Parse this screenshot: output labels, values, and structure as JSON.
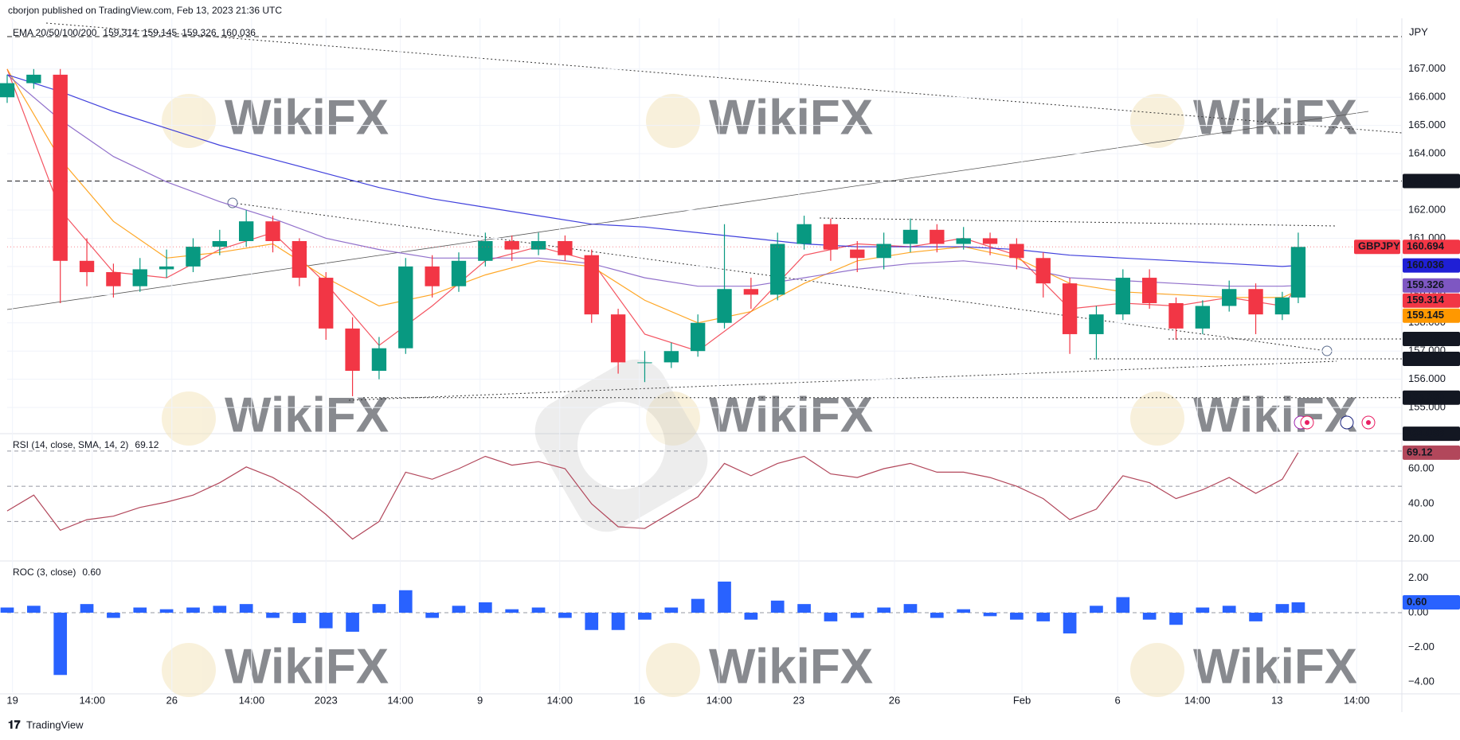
{
  "header": {
    "publisher": "cborjon published on TradingView.com, Feb 13, 2023 21:36 UTC",
    "currency": "JPY",
    "footer": "TradingView",
    "watermark": "WikiFX"
  },
  "chart_data": [
    {
      "type": "candlestick",
      "symbol": "GBPJPY",
      "title": "EMA 20/50/100/200",
      "up_color": "#089981",
      "down_color": "#f23645",
      "xlim": [
        0,
        262.5
      ],
      "ylim": [
        154.1,
        168.8
      ],
      "yticks": [
        {
          "value": 155,
          "label": "155.000"
        },
        {
          "value": 156,
          "label": "156.000"
        },
        {
          "value": 157,
          "label": "157.000"
        },
        {
          "value": 158,
          "label": "158.000"
        },
        {
          "value": 159,
          "label": "159.000"
        },
        {
          "value": 160,
          "label": "160.000"
        },
        {
          "value": 161,
          "label": "161.000"
        },
        {
          "value": 162,
          "label": "162.000"
        },
        {
          "value": 163,
          "label": "163.000"
        },
        {
          "value": 164,
          "label": "164.000"
        },
        {
          "value": 165,
          "label": "165.000"
        },
        {
          "value": 166,
          "label": "166.000"
        },
        {
          "value": 167,
          "label": "167.000"
        }
      ],
      "x": [
        0,
        5,
        10,
        15,
        20,
        25,
        30,
        35,
        40,
        45,
        50,
        55,
        60,
        65,
        70,
        75,
        80,
        85,
        90,
        95,
        100,
        105,
        110,
        115,
        120,
        125,
        130,
        135,
        140,
        145,
        150,
        155,
        160,
        165,
        170,
        175,
        180,
        185,
        190,
        195,
        200,
        205,
        210,
        215,
        220,
        225,
        230,
        235,
        240,
        243
      ],
      "open": [
        166.0,
        166.5,
        166.8,
        160.2,
        159.8,
        159.3,
        159.9,
        160.0,
        160.7,
        160.9,
        161.6,
        160.9,
        159.6,
        157.8,
        156.3,
        157.1,
        160.0,
        159.3,
        160.2,
        160.9,
        160.6,
        160.9,
        160.4,
        158.3,
        156.6,
        156.6,
        157.0,
        158.0,
        159.2,
        159.0,
        160.8,
        161.5,
        160.6,
        160.3,
        160.8,
        161.3,
        160.8,
        161.0,
        160.8,
        160.3,
        159.4,
        157.6,
        158.3,
        159.6,
        158.7,
        157.8,
        158.6,
        159.2,
        158.3,
        158.9
      ],
      "high": [
        166.8,
        167.0,
        167.0,
        161.0,
        160.1,
        160.3,
        160.6,
        161.0,
        161.3,
        162.0,
        161.8,
        161.0,
        159.8,
        158.2,
        157.5,
        160.3,
        160.4,
        160.5,
        161.2,
        161.1,
        161.2,
        161.1,
        160.6,
        158.5,
        157.0,
        157.3,
        158.3,
        161.5,
        159.6,
        161.2,
        161.8,
        161.7,
        160.9,
        161.2,
        161.7,
        161.5,
        161.4,
        161.2,
        161.0,
        160.5,
        159.6,
        158.6,
        159.9,
        159.9,
        158.9,
        158.8,
        159.5,
        159.4,
        159.1,
        161.2
      ],
      "low": [
        165.8,
        166.3,
        158.7,
        159.3,
        158.9,
        159.1,
        159.6,
        159.8,
        160.4,
        160.7,
        160.5,
        159.3,
        157.4,
        155.4,
        156.0,
        156.9,
        158.9,
        159.1,
        160.0,
        160.2,
        160.4,
        160.2,
        158.0,
        156.2,
        155.9,
        156.4,
        156.8,
        157.8,
        158.5,
        158.8,
        160.6,
        160.2,
        159.8,
        159.9,
        160.5,
        160.5,
        160.6,
        160.4,
        159.9,
        158.9,
        156.9,
        156.7,
        158.1,
        158.5,
        157.4,
        157.6,
        158.4,
        157.6,
        158.1,
        158.7
      ],
      "close": [
        166.5,
        166.8,
        160.2,
        159.8,
        159.3,
        159.9,
        160.0,
        160.7,
        160.9,
        161.6,
        160.9,
        159.6,
        157.8,
        156.3,
        157.1,
        160.0,
        159.3,
        160.2,
        160.9,
        160.6,
        160.9,
        160.4,
        158.3,
        156.6,
        156.6,
        157.0,
        158.0,
        159.2,
        159.0,
        160.8,
        161.5,
        160.6,
        160.3,
        160.8,
        161.3,
        160.8,
        161.0,
        160.8,
        160.3,
        159.4,
        157.6,
        158.3,
        159.6,
        158.7,
        157.8,
        158.6,
        159.2,
        158.3,
        158.9,
        160.694
      ],
      "series": [
        {
          "color": "#f23645",
          "x": [
            0,
            10,
            20,
            30,
            40,
            50,
            60,
            70,
            80,
            90,
            100,
            110,
            120,
            130,
            140,
            150,
            160,
            170,
            180,
            190,
            200,
            210,
            220,
            230,
            240,
            243
          ],
          "values": [
            167.0,
            162.0,
            159.8,
            159.6,
            160.6,
            161.2,
            159.4,
            157.2,
            158.6,
            160.2,
            160.7,
            160.2,
            157.6,
            157.0,
            158.4,
            160.4,
            160.8,
            160.7,
            161.0,
            160.4,
            158.5,
            158.7,
            158.6,
            158.9,
            158.6,
            159.314
          ]
        },
        {
          "color": "#ff9800",
          "x": [
            0,
            10,
            20,
            30,
            40,
            50,
            60,
            70,
            80,
            90,
            100,
            110,
            120,
            130,
            140,
            150,
            160,
            170,
            180,
            190,
            200,
            210,
            220,
            230,
            240,
            243
          ],
          "values": [
            167.0,
            163.8,
            161.6,
            160.3,
            160.5,
            160.8,
            159.6,
            158.6,
            159.0,
            159.7,
            160.2,
            160.0,
            158.8,
            158.0,
            158.4,
            159.4,
            160.2,
            160.5,
            160.7,
            160.3,
            159.4,
            159.1,
            159.0,
            158.9,
            158.9,
            159.145
          ]
        },
        {
          "color": "#7e57c2",
          "x": [
            0,
            10,
            20,
            30,
            40,
            50,
            60,
            70,
            80,
            90,
            100,
            110,
            120,
            130,
            140,
            150,
            160,
            170,
            180,
            190,
            200,
            210,
            220,
            230,
            240,
            243
          ],
          "values": [
            166.8,
            165.2,
            163.9,
            163.0,
            162.3,
            161.7,
            161.0,
            160.6,
            160.3,
            160.3,
            160.3,
            160.1,
            159.6,
            159.3,
            159.3,
            159.6,
            159.9,
            160.1,
            160.2,
            160.0,
            159.6,
            159.5,
            159.4,
            159.3,
            159.3,
            159.326
          ]
        },
        {
          "color": "#1f1fd6",
          "x": [
            0,
            10,
            20,
            30,
            40,
            50,
            60,
            70,
            80,
            90,
            100,
            110,
            120,
            130,
            140,
            150,
            160,
            170,
            180,
            190,
            200,
            210,
            220,
            230,
            240,
            243
          ],
          "values": [
            166.8,
            166.2,
            165.5,
            164.9,
            164.3,
            163.8,
            163.3,
            162.8,
            162.4,
            162.1,
            161.8,
            161.5,
            161.4,
            161.2,
            161.0,
            160.8,
            160.7,
            160.7,
            160.7,
            160.6,
            160.4,
            160.3,
            160.2,
            160.1,
            160.0,
            160.036
          ]
        }
      ],
      "dashed_lines": [
        168.15,
        163.029
      ],
      "levels": [
        {
          "value": 163.029,
          "label": "163.029"
        },
        {
          "value": 157.428,
          "label": "157.428"
        },
        {
          "value": 156.724,
          "label": "156.724"
        },
        {
          "value": 155.35,
          "label": "155.350"
        },
        {
          "value": 154.068,
          "label": "154.068"
        }
      ]
    },
    {
      "type": "line",
      "title": "RSI (14, close, SMA, 14, 2)",
      "color": "#b2475b",
      "xlim": [
        0,
        262.5
      ],
      "ylim": [
        8,
        79
      ],
      "yticks": [
        {
          "value": 20,
          "label": "20.00"
        },
        {
          "value": 40,
          "label": "40.00"
        },
        {
          "value": 60,
          "label": "60.00"
        }
      ],
      "bands": [
        70,
        50,
        30
      ],
      "x": [
        0,
        5,
        10,
        15,
        20,
        25,
        30,
        35,
        40,
        45,
        50,
        55,
        60,
        65,
        70,
        75,
        80,
        85,
        90,
        95,
        100,
        105,
        110,
        115,
        120,
        125,
        130,
        135,
        140,
        145,
        150,
        155,
        160,
        165,
        170,
        175,
        180,
        185,
        190,
        195,
        200,
        205,
        210,
        215,
        220,
        225,
        230,
        235,
        240,
        243
      ],
      "values": [
        36,
        45,
        25,
        31,
        33,
        38,
        41,
        45,
        52,
        61,
        55,
        46,
        34,
        20,
        30,
        58,
        54,
        60,
        67,
        62,
        64,
        60,
        40,
        27,
        26,
        35,
        44,
        63,
        56,
        63,
        67,
        57,
        55,
        60,
        63,
        58,
        58,
        55,
        50,
        43,
        31,
        37,
        56,
        52,
        43,
        48,
        55,
        46,
        54,
        69.12
      ]
    },
    {
      "type": "bar",
      "title": "ROC (3, close)",
      "color": "#2962ff",
      "xlim": [
        0,
        262.5
      ],
      "ylim": [
        -4.6,
        2.9
      ],
      "yticks": [
        {
          "value": 2,
          "label": "2.00"
        },
        {
          "value": 0,
          "label": "0.00"
        },
        {
          "value": -2,
          "label": "−2.00"
        },
        {
          "value": -4,
          "label": "−4.00"
        }
      ],
      "xticks": [
        {
          "value": 1,
          "label": "19"
        },
        {
          "value": 16,
          "label": "14:00"
        },
        {
          "value": 31,
          "label": "26"
        },
        {
          "value": 46,
          "label": "14:00"
        },
        {
          "value": 60,
          "label": "2023"
        },
        {
          "value": 74,
          "label": "14:00"
        },
        {
          "value": 89,
          "label": "9"
        },
        {
          "value": 104,
          "label": "14:00"
        },
        {
          "value": 119,
          "label": "16"
        },
        {
          "value": 134,
          "label": "14:00"
        },
        {
          "value": 149,
          "label": "23"
        },
        {
          "value": 167,
          "label": "26"
        },
        {
          "value": 191,
          "label": "Feb"
        },
        {
          "value": 209,
          "label": "6"
        },
        {
          "value": 224,
          "label": "14:00"
        },
        {
          "value": 239,
          "label": "13"
        },
        {
          "value": 254,
          "label": "14:00"
        }
      ],
      "x": [
        0,
        5,
        10,
        15,
        20,
        25,
        30,
        35,
        40,
        45,
        50,
        55,
        60,
        65,
        70,
        75,
        80,
        85,
        90,
        95,
        100,
        105,
        110,
        115,
        120,
        125,
        130,
        135,
        140,
        145,
        150,
        155,
        160,
        165,
        170,
        175,
        180,
        185,
        190,
        195,
        200,
        205,
        210,
        215,
        220,
        225,
        230,
        235,
        240,
        243
      ],
      "values": [
        0.3,
        0.4,
        -3.6,
        0.5,
        -0.3,
        0.3,
        0.2,
        0.3,
        0.4,
        0.5,
        -0.3,
        -0.6,
        -0.9,
        -1.1,
        0.5,
        1.3,
        -0.3,
        0.4,
        0.6,
        0.2,
        0.3,
        -0.3,
        -1.0,
        -1.0,
        -0.4,
        0.3,
        0.8,
        1.8,
        -0.4,
        0.7,
        0.5,
        -0.5,
        -0.3,
        0.3,
        0.5,
        -0.3,
        0.2,
        -0.2,
        -0.4,
        -0.5,
        -1.2,
        0.4,
        0.9,
        -0.4,
        -0.7,
        0.3,
        0.4,
        -0.5,
        0.5,
        0.6
      ],
      "value_labels": [
        null,
        null,
        null,
        null,
        null,
        null,
        null,
        null,
        null,
        null,
        null,
        null,
        null,
        null,
        null,
        null,
        null,
        null,
        null,
        null,
        null,
        null,
        null,
        null,
        null,
        null,
        null,
        null,
        null,
        null,
        null,
        null,
        null,
        null,
        null,
        null,
        null,
        null,
        null,
        null,
        null,
        null,
        null,
        null,
        null,
        null,
        null,
        null,
        null,
        "0.60"
      ]
    }
  ]
}
